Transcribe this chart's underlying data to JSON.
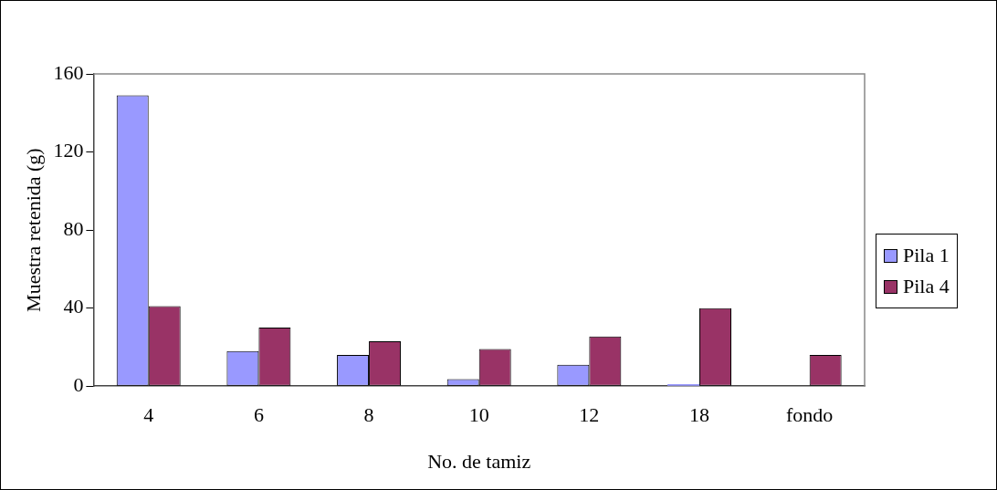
{
  "chart_data": {
    "type": "bar",
    "xlabel": "No. de tamiz",
    "ylabel": "Muestra retenida (g)",
    "categories": [
      "4",
      "6",
      "8",
      "10",
      "12",
      "18",
      "fondo"
    ],
    "series": [
      {
        "name": "Pila 1",
        "color": "#9999ff",
        "values": [
          149,
          18,
          16,
          3.6,
          11,
          1,
          0
        ]
      },
      {
        "name": "Pila 4",
        "color": "#993366",
        "values": [
          41,
          30,
          23,
          19,
          25.5,
          40,
          16
        ]
      }
    ],
    "ylim": [
      0,
      160
    ],
    "yticks": [
      0,
      40,
      80,
      120,
      160
    ],
    "grid": false,
    "legend": "right"
  }
}
